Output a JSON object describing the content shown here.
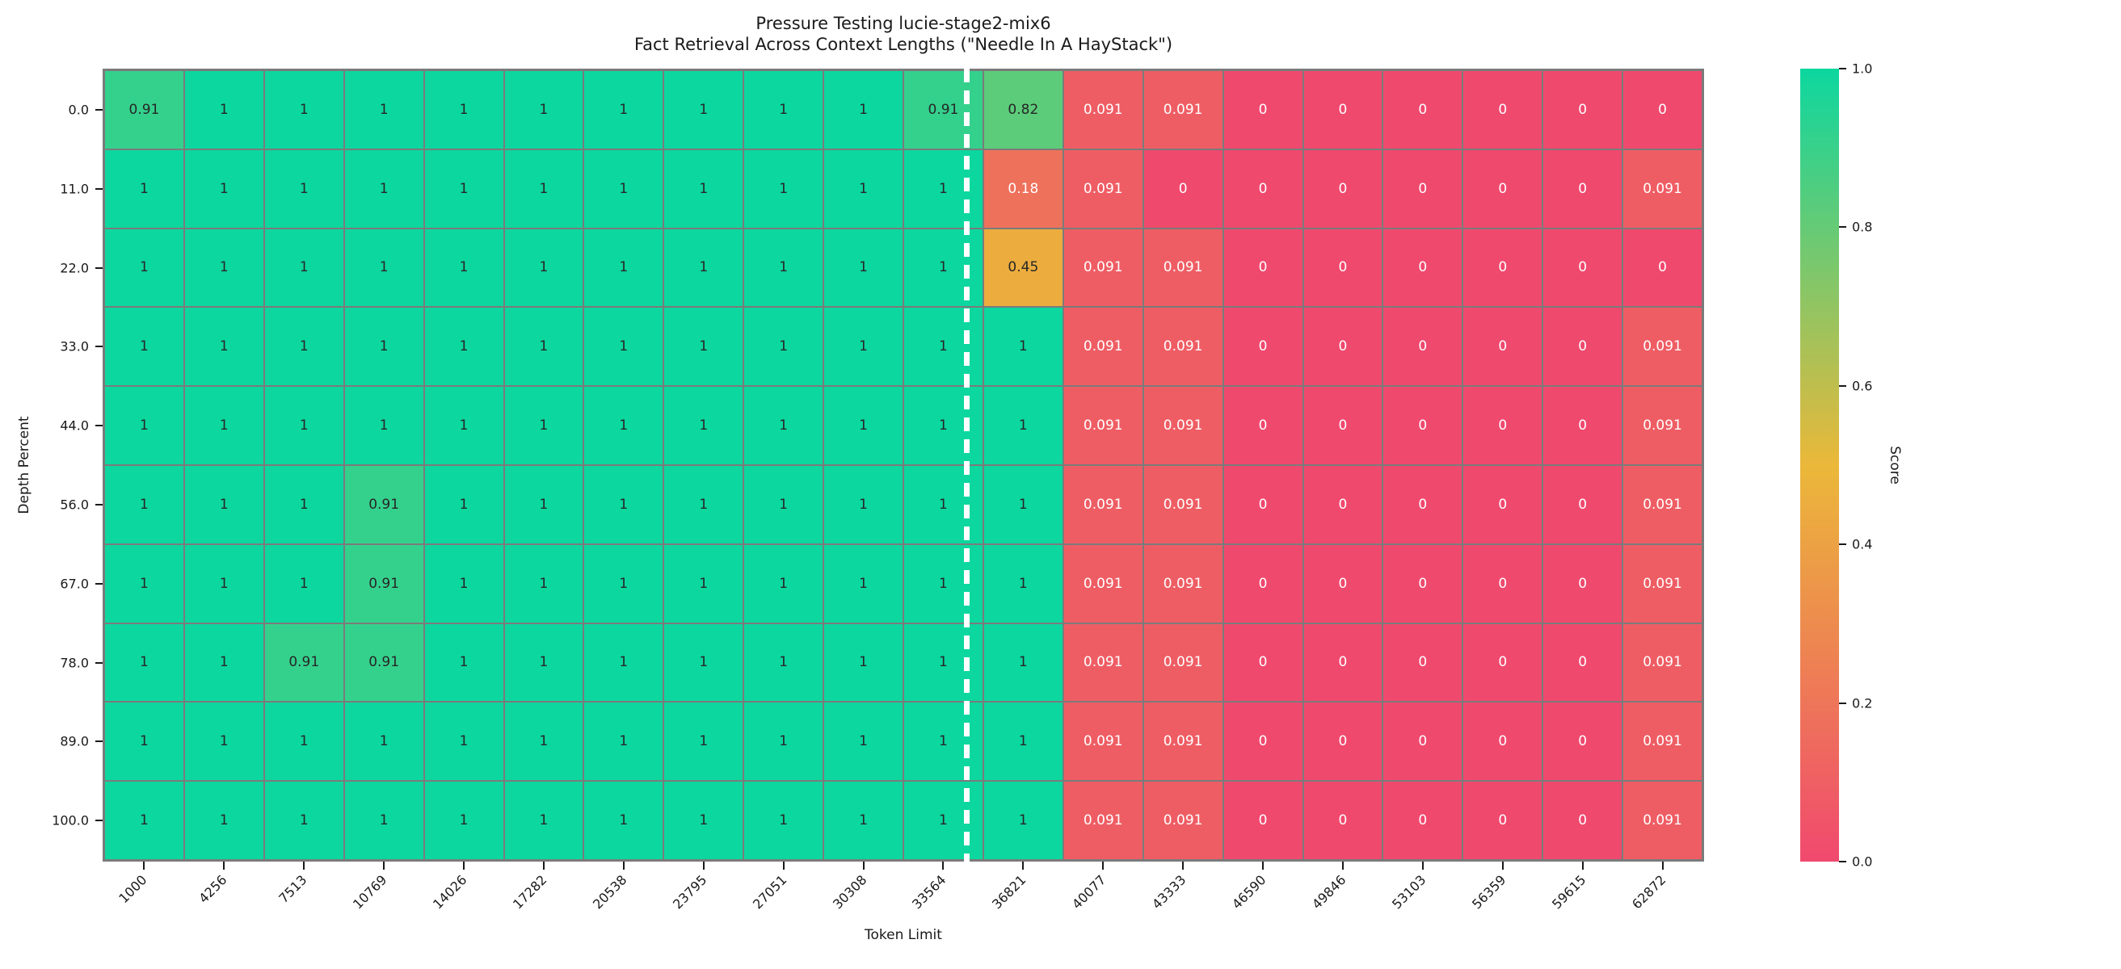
{
  "title": {
    "line1": "Pressure Testing lucie-stage2-mix6",
    "line2": "Fact Retrieval Across Context Lengths (\"Needle In A HayStack\")"
  },
  "chart_data": {
    "type": "heatmap",
    "title": "Pressure Testing lucie-stage2-mix6\nFact Retrieval Across Context Lengths (\"Needle In A HayStack\")",
    "xlabel": "Token Limit",
    "ylabel": "Depth Percent",
    "x_categories": [
      "1000",
      "4256",
      "7513",
      "10769",
      "14026",
      "17282",
      "20538",
      "23795",
      "27051",
      "30308",
      "33564",
      "36821",
      "40077",
      "43333",
      "46590",
      "49846",
      "53103",
      "56359",
      "59615",
      "62872"
    ],
    "y_categories": [
      "0.0",
      "11.0",
      "22.0",
      "33.0",
      "44.0",
      "56.0",
      "67.0",
      "78.0",
      "89.0",
      "100.0"
    ],
    "values": [
      [
        0.91,
        1,
        1,
        1,
        1,
        1,
        1,
        1,
        1,
        1,
        0.91,
        0.82,
        0.091,
        0.091,
        0,
        0,
        0,
        0,
        0,
        0
      ],
      [
        1,
        1,
        1,
        1,
        1,
        1,
        1,
        1,
        1,
        1,
        1,
        0.18,
        0.091,
        0,
        0,
        0,
        0,
        0,
        0,
        0.091
      ],
      [
        1,
        1,
        1,
        1,
        1,
        1,
        1,
        1,
        1,
        1,
        1,
        0.45,
        0.091,
        0.091,
        0,
        0,
        0,
        0,
        0,
        0
      ],
      [
        1,
        1,
        1,
        1,
        1,
        1,
        1,
        1,
        1,
        1,
        1,
        1,
        0.091,
        0.091,
        0,
        0,
        0,
        0,
        0,
        0.091
      ],
      [
        1,
        1,
        1,
        1,
        1,
        1,
        1,
        1,
        1,
        1,
        1,
        1,
        0.091,
        0.091,
        0,
        0,
        0,
        0,
        0,
        0.091
      ],
      [
        1,
        1,
        1,
        0.91,
        1,
        1,
        1,
        1,
        1,
        1,
        1,
        1,
        0.091,
        0.091,
        0,
        0,
        0,
        0,
        0,
        0.091
      ],
      [
        1,
        1,
        1,
        0.91,
        1,
        1,
        1,
        1,
        1,
        1,
        1,
        1,
        0.091,
        0.091,
        0,
        0,
        0,
        0,
        0,
        0.091
      ],
      [
        1,
        1,
        0.91,
        0.91,
        1,
        1,
        1,
        1,
        1,
        1,
        1,
        1,
        0.091,
        0.091,
        0,
        0,
        0,
        0,
        0,
        0.091
      ],
      [
        1,
        1,
        1,
        1,
        1,
        1,
        1,
        1,
        1,
        1,
        1,
        1,
        0.091,
        0.091,
        0,
        0,
        0,
        0,
        0,
        0.091
      ],
      [
        1,
        1,
        1,
        1,
        1,
        1,
        1,
        1,
        1,
        1,
        1,
        1,
        0.091,
        0.091,
        0,
        0,
        0,
        0,
        0,
        0.091
      ]
    ],
    "value_range": [
      0,
      1
    ],
    "grid_line_color": "#7b7b7b",
    "divider_after_column_index": 10,
    "divider_color": "#ffffff",
    "colormap_stops": [
      {
        "pos": 0.0,
        "color": "#F0496E"
      },
      {
        "pos": 0.5,
        "color": "#EBB839"
      },
      {
        "pos": 1.0,
        "color": "#0CD79F"
      }
    ],
    "colorbar": {
      "label": "Score",
      "ticks": [
        "1.0",
        "0.8",
        "0.6",
        "0.4",
        "0.2",
        "0.0"
      ]
    }
  }
}
